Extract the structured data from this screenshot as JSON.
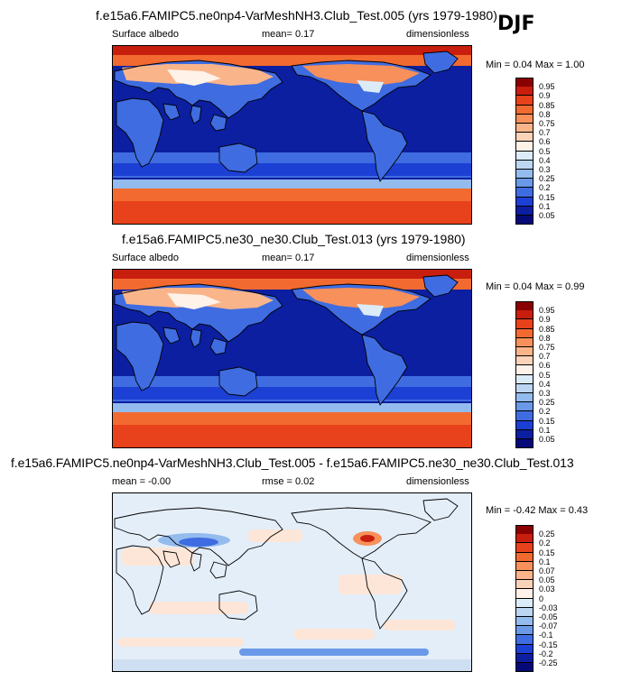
{
  "season": "DJF",
  "panels": [
    {
      "title": "f.e15a6.FAMIPC5.ne0np4-VarMeshNH3.Club_Test.005 (yrs 1979-1980)",
      "left_label": "Surface albedo",
      "mid_label": "mean=  0.17",
      "right_label": "dimensionless",
      "minmax": "Min =  0.04 Max =  1.00"
    },
    {
      "title": "f.e15a6.FAMIPC5.ne30_ne30.Club_Test.013 (yrs 1979-1980)",
      "left_label": "Surface albedo",
      "mid_label": "mean=  0.17",
      "right_label": "dimensionless",
      "minmax": "Min =  0.04 Max =  0.99"
    },
    {
      "title": "f.e15a6.FAMIPC5.ne0np4-VarMeshNH3.Club_Test.005 - f.e15a6.FAMIPC5.ne30_ne30.Club_Test.013",
      "left_label": "mean = -0.00",
      "mid_label": "rmse =  0.02",
      "right_label": "dimensionless",
      "minmax": "Min = -0.42 Max =  0.43"
    }
  ],
  "chart_data": [
    {
      "type": "heatmap",
      "title": "f.e15a6.FAMIPC5.ne0np4-VarMeshNH3.Club_Test.005 (yrs 1979-1980)",
      "variable": "Surface albedo",
      "units": "dimensionless",
      "mean": 0.17,
      "min": 0.04,
      "max": 1.0,
      "colorbar_levels": [
        "0.95",
        "0.9",
        "0.85",
        "0.8",
        "0.75",
        "0.7",
        "0.6",
        "0.5",
        "0.4",
        "0.3",
        "0.25",
        "0.2",
        "0.15",
        "0.1",
        "0.05"
      ],
      "colorbar_colors": [
        "#8b0000",
        "#c81e0e",
        "#e8421c",
        "#f26a30",
        "#f7905a",
        "#fab48a",
        "#fbd3b8",
        "#fff2e8",
        "#dcebf8",
        "#bcd6f2",
        "#94bbee",
        "#6a99e8",
        "#3f6ce0",
        "#1c3fd4",
        "#0c1fa0",
        "#050a78"
      ]
    },
    {
      "type": "heatmap",
      "title": "f.e15a6.FAMIPC5.ne30_ne30.Club_Test.013 (yrs 1979-1980)",
      "variable": "Surface albedo",
      "units": "dimensionless",
      "mean": 0.17,
      "min": 0.04,
      "max": 0.99,
      "colorbar_levels": [
        "0.95",
        "0.9",
        "0.85",
        "0.8",
        "0.75",
        "0.7",
        "0.6",
        "0.5",
        "0.4",
        "0.3",
        "0.25",
        "0.2",
        "0.15",
        "0.1",
        "0.05"
      ],
      "colorbar_colors": [
        "#8b0000",
        "#c81e0e",
        "#e8421c",
        "#f26a30",
        "#f7905a",
        "#fab48a",
        "#fbd3b8",
        "#fff2e8",
        "#dcebf8",
        "#bcd6f2",
        "#94bbee",
        "#6a99e8",
        "#3f6ce0",
        "#1c3fd4",
        "#0c1fa0",
        "#050a78"
      ]
    },
    {
      "type": "heatmap",
      "title": "f.e15a6.FAMIPC5.ne0np4-VarMeshNH3.Club_Test.005 - f.e15a6.FAMIPC5.ne30_ne30.Club_Test.013",
      "units": "dimensionless",
      "mean": -0.0,
      "rmse": 0.02,
      "min": -0.42,
      "max": 0.43,
      "colorbar_levels": [
        "0.25",
        "0.2",
        "0.15",
        "0.1",
        "0.07",
        "0.05",
        "0.03",
        "0",
        "-0.03",
        "-0.05",
        "-0.07",
        "-0.1",
        "-0.15",
        "-0.2",
        "-0.25"
      ],
      "colorbar_colors": [
        "#8b0000",
        "#c81e0e",
        "#e8421c",
        "#f26a30",
        "#f7905a",
        "#fab48a",
        "#fbd3b8",
        "#fff2e8",
        "#dcebf8",
        "#bcd6f2",
        "#94bbee",
        "#6a99e8",
        "#3f6ce0",
        "#1c3fd4",
        "#0c1fa0",
        "#050a78"
      ]
    }
  ]
}
